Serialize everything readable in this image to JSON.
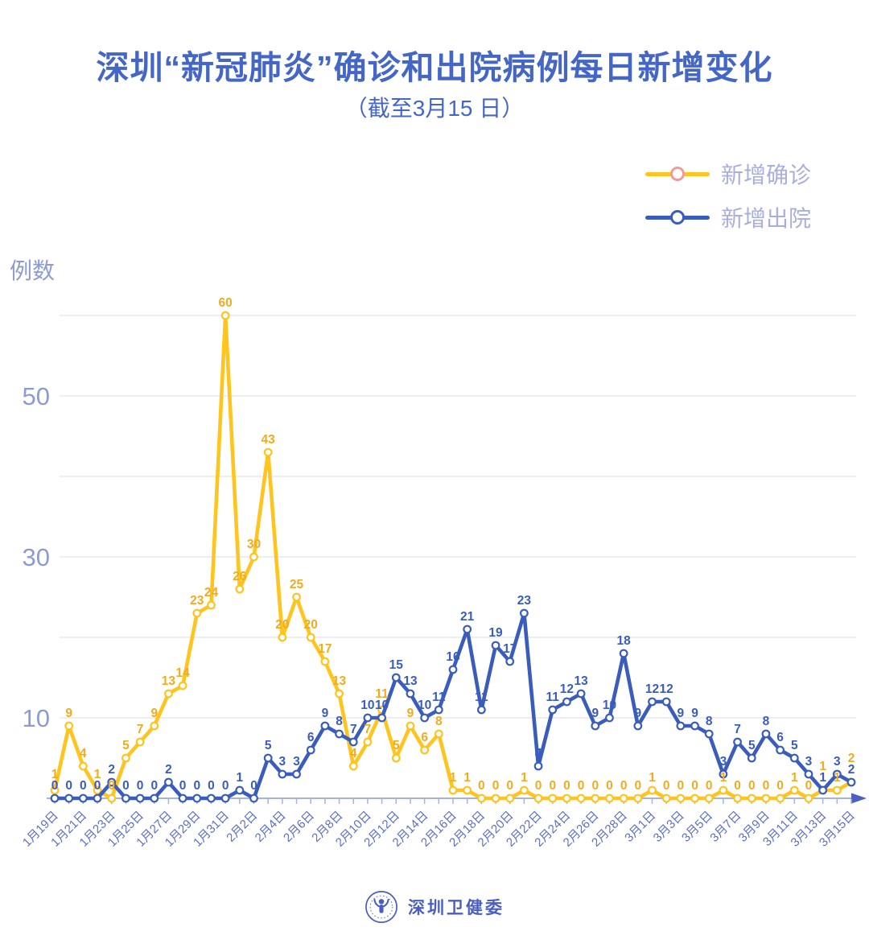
{
  "header": {
    "title": "深圳“新冠肺炎”确诊和出院病例每日新增变化",
    "subtitle": "（截至3月15 日）"
  },
  "footer": {
    "brand": "深圳卫健委",
    "logo_icon": "person-in-circle"
  },
  "colors": {
    "title": "#4466C6",
    "axis_label": "#8E9BD3",
    "date_label": "#5C6FC5",
    "grid": "#E4E4EA",
    "axis_line": "#A8B3DC",
    "axis_arrow": "#4A60C4",
    "legend_text": "#A8AFDC",
    "footer_blue": "#4A5EC1",
    "background": "#FFFFFF"
  },
  "chart_data": {
    "type": "line",
    "title": "深圳“新冠肺炎”确诊和出院病例每日新增变化",
    "subtitle": "（截至3月15 日）",
    "ylabel": "例数",
    "xlabel": "",
    "ylim": [
      0,
      62
    ],
    "yticks_labeled": [
      10,
      30,
      50
    ],
    "gridline_values": [
      10,
      20,
      30,
      40,
      50,
      60
    ],
    "grid": true,
    "legend_position": "top-right",
    "x_label_step": 2,
    "categories": [
      "1月19日",
      "1月20日",
      "1月21日",
      "1月22日",
      "1月23日",
      "1月24日",
      "1月25日",
      "1月26日",
      "1月27日",
      "1月28日",
      "1月29日",
      "1月30日",
      "1月31日",
      "2月1日",
      "2月2日",
      "2月3日",
      "2月4日",
      "2月5日",
      "2月6日",
      "2月7日",
      "2月8日",
      "2月9日",
      "2月10日",
      "2月11日",
      "2月12日",
      "2月13日",
      "2月14日",
      "2月15日",
      "2月16日",
      "2月17日",
      "2月18日",
      "2月19日",
      "2月20日",
      "2月21日",
      "2月22日",
      "2月23日",
      "2月24日",
      "2月25日",
      "2月26日",
      "2月27日",
      "2月28日",
      "2月29日",
      "3月1日",
      "3月2日",
      "3月3日",
      "3月4日",
      "3月5日",
      "3月6日",
      "3月7日",
      "3月8日",
      "3月9日",
      "3月10日",
      "3月11日",
      "3月12日",
      "3月13日",
      "3月14日",
      "3月15日"
    ],
    "series": [
      {
        "name": "新增确诊",
        "color": "#FFC41D",
        "label_color": "#F0AC1E",
        "legend_ring": "#F09B9B",
        "values": [
          1,
          9,
          4,
          1,
          0,
          5,
          7,
          9,
          13,
          14,
          23,
          24,
          60,
          26,
          30,
          43,
          20,
          25,
          20,
          17,
          13,
          4,
          7,
          11,
          5,
          9,
          6,
          8,
          1,
          1,
          0,
          0,
          0,
          1,
          0,
          0,
          0,
          0,
          0,
          0,
          0,
          0,
          1,
          0,
          0,
          0,
          0,
          1,
          0,
          0,
          0,
          0,
          1,
          0,
          1,
          1,
          2
        ]
      },
      {
        "name": "新增出院",
        "color": "#3A5DBD",
        "label_color": "#3A5DBD",
        "legend_ring": "#3A5DBD",
        "values": [
          0,
          0,
          0,
          0,
          2,
          0,
          0,
          0,
          2,
          0,
          0,
          0,
          0,
          1,
          0,
          5,
          3,
          3,
          6,
          9,
          8,
          7,
          10,
          10,
          15,
          13,
          10,
          11,
          16,
          21,
          11,
          19,
          17,
          23,
          4,
          11,
          12,
          13,
          9,
          10,
          18,
          9,
          12,
          12,
          9,
          9,
          8,
          3,
          7,
          5,
          8,
          6,
          5,
          3,
          1,
          3,
          2
        ]
      }
    ]
  }
}
